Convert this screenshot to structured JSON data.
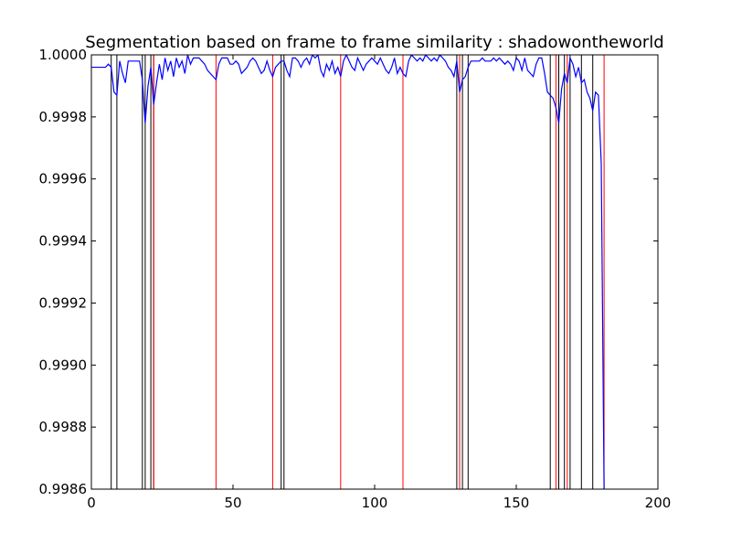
{
  "chart_data": {
    "type": "line",
    "title": "Segmentation based on frame to frame similarity : shadowontheworld",
    "xlabel": "",
    "ylabel": "",
    "xlim": [
      0,
      200
    ],
    "ylim": [
      0.9986,
      1.0
    ],
    "xticks": [
      0,
      50,
      100,
      150,
      200
    ],
    "xtick_labels": [
      "0",
      "50",
      "100",
      "150",
      "200"
    ],
    "yticks": [
      0.9986,
      0.9988,
      0.999,
      0.9992,
      0.9994,
      0.9996,
      0.9998,
      1.0
    ],
    "ytick_labels": [
      "0.9986",
      "0.9988",
      "0.9990",
      "0.9992",
      "0.9994",
      "0.9996",
      "0.9998",
      "1.0000"
    ],
    "grid": false,
    "series": [
      {
        "color": "#0000ff",
        "x": [
          0,
          1,
          2,
          3,
          4,
          5,
          6,
          7,
          8,
          9,
          10,
          11,
          12,
          13,
          14,
          15,
          16,
          17,
          18,
          19,
          20,
          21,
          22,
          23,
          24,
          25,
          26,
          27,
          28,
          29,
          30,
          31,
          32,
          33,
          34,
          35,
          36,
          37,
          38,
          39,
          40,
          41,
          42,
          43,
          44,
          45,
          46,
          47,
          48,
          49,
          50,
          51,
          52,
          53,
          54,
          55,
          56,
          57,
          58,
          59,
          60,
          61,
          62,
          63,
          64,
          65,
          66,
          67,
          68,
          69,
          70,
          71,
          72,
          73,
          74,
          75,
          76,
          77,
          78,
          79,
          80,
          81,
          82,
          83,
          84,
          85,
          86,
          87,
          88,
          89,
          90,
          91,
          92,
          93,
          94,
          95,
          96,
          97,
          98,
          99,
          100,
          101,
          102,
          103,
          104,
          105,
          106,
          107,
          108,
          109,
          110,
          111,
          112,
          113,
          114,
          115,
          116,
          117,
          118,
          119,
          120,
          121,
          122,
          123,
          124,
          125,
          126,
          127,
          128,
          129,
          130,
          131,
          132,
          133,
          134,
          135,
          136,
          137,
          138,
          139,
          140,
          141,
          142,
          143,
          144,
          145,
          146,
          147,
          148,
          149,
          150,
          151,
          152,
          153,
          154,
          155,
          156,
          157,
          158,
          159,
          160,
          161,
          162,
          163,
          164,
          165,
          166,
          167,
          168,
          169,
          170,
          171,
          172,
          173,
          174,
          175,
          176,
          177,
          178,
          179,
          180,
          181
        ],
        "y": [
          0.99996,
          0.99996,
          0.99996,
          0.99996,
          0.99996,
          0.99996,
          0.99997,
          0.99996,
          0.99988,
          0.99987,
          0.99998,
          0.99994,
          0.99991,
          0.99998,
          0.99998,
          0.99998,
          0.99998,
          0.99998,
          0.99992,
          0.99978,
          0.9999,
          0.99996,
          0.99984,
          0.99991,
          0.99997,
          0.99992,
          0.99999,
          0.99995,
          0.99998,
          0.99993,
          0.99999,
          0.99996,
          0.99998,
          0.99994,
          1.0,
          0.99997,
          0.99999,
          0.99999,
          0.99999,
          0.99998,
          0.99997,
          0.99995,
          0.99994,
          0.99993,
          0.99992,
          0.99997,
          0.99999,
          0.99999,
          0.99999,
          0.99997,
          0.99997,
          0.99998,
          0.99997,
          0.99994,
          0.99995,
          0.99996,
          0.99998,
          0.99999,
          0.99998,
          0.99996,
          0.99994,
          0.99995,
          0.99998,
          0.99995,
          0.99993,
          0.99996,
          0.99997,
          0.99998,
          0.99998,
          0.99995,
          0.99993,
          0.99999,
          0.99999,
          0.99998,
          0.99996,
          0.99998,
          0.99999,
          0.99997,
          1.0,
          0.99999,
          1.0,
          0.99995,
          0.99993,
          0.99997,
          0.99995,
          0.99998,
          0.99994,
          0.99996,
          0.99993,
          0.99998,
          1.0,
          0.99998,
          0.99996,
          0.99995,
          0.99999,
          0.99997,
          0.99995,
          0.99997,
          0.99998,
          0.99999,
          0.99998,
          0.99997,
          0.99999,
          0.99997,
          0.99995,
          0.99994,
          0.99996,
          0.99999,
          0.99994,
          0.99996,
          0.99994,
          0.99993,
          0.99998,
          1.0,
          0.99999,
          0.99998,
          0.99999,
          0.99998,
          1.0,
          0.99999,
          0.99998,
          0.99999,
          0.99998,
          1.0,
          0.99999,
          0.99998,
          0.99996,
          0.99995,
          0.99993,
          0.99998,
          0.99988,
          0.99992,
          0.99993,
          0.99996,
          0.99998,
          0.99998,
          0.99998,
          0.99998,
          0.99999,
          0.99998,
          0.99998,
          0.99998,
          0.99999,
          0.99998,
          0.99999,
          0.99998,
          0.99997,
          0.99998,
          0.99997,
          0.99995,
          0.99999,
          0.99998,
          0.99995,
          0.99999,
          0.99995,
          0.99994,
          0.99993,
          0.99997,
          0.99999,
          0.99999,
          0.99994,
          0.99988,
          0.99987,
          0.99986,
          0.99983,
          0.99978,
          0.99989,
          0.99994,
          0.99991,
          0.99999,
          0.99997,
          0.99993,
          0.99996,
          0.99991,
          0.99992,
          0.99988,
          0.99986,
          0.99982,
          0.99988,
          0.99987,
          0.99965,
          0.9986
        ]
      }
    ],
    "segment_boundaries": {
      "black": {
        "color": "#000000",
        "x": [
          7,
          9,
          18,
          19,
          21,
          22,
          67,
          68,
          129,
          131,
          133,
          162,
          165,
          167,
          169,
          173,
          177
        ]
      },
      "red": {
        "color": "#ff0000",
        "x": [
          22,
          44,
          64,
          88,
          110,
          130,
          164,
          168,
          181
        ]
      }
    }
  }
}
